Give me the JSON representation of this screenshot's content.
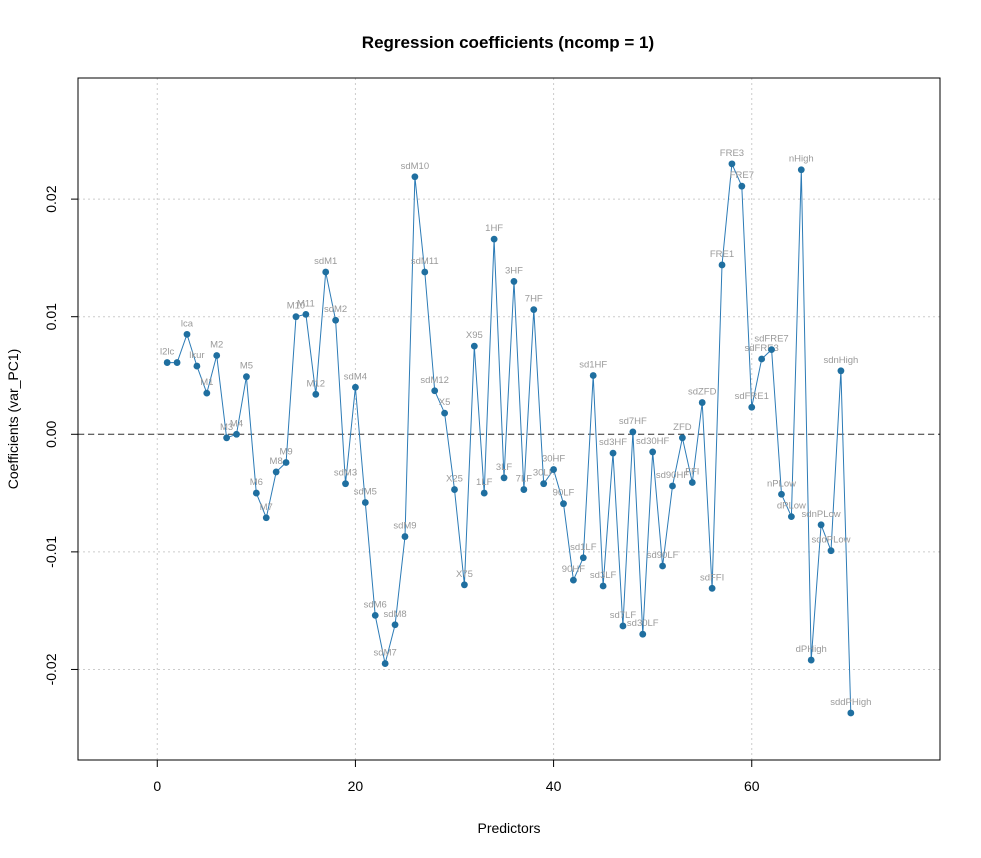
{
  "chart_data": {
    "type": "line",
    "title": "Regression coefficients (ncomp = 1)",
    "xlabel": "Predictors",
    "ylabel": "Coefficients (var_PC1)",
    "xlim": [
      -8,
      79
    ],
    "ylim": [
      -0.0277,
      0.0303
    ],
    "x_ticks": [
      0,
      20,
      40,
      60
    ],
    "y_ticks": [
      -0.02,
      -0.01,
      0.0,
      0.01,
      0.02
    ],
    "x_tick_labels": [
      "0",
      "20",
      "40",
      "60"
    ],
    "y_tick_labels": [
      "-0.02",
      "-0.01",
      "0.00",
      "0.01",
      "0.02"
    ],
    "grid": true,
    "reference_line": 0,
    "colors": {
      "line": "#2c7bb6",
      "point": "#1f6fa0",
      "label": "#9a9a9a",
      "grid": "#cccccc"
    },
    "points": [
      {
        "x": 1,
        "y": 0.0061,
        "label": "l2lc"
      },
      {
        "x": 2,
        "y": 0.0061,
        "label": ""
      },
      {
        "x": 3,
        "y": 0.0085,
        "label": "lca"
      },
      {
        "x": 4,
        "y": 0.0058,
        "label": "lkur"
      },
      {
        "x": 5,
        "y": 0.0035,
        "label": "M1"
      },
      {
        "x": 6,
        "y": 0.0067,
        "label": "M2"
      },
      {
        "x": 7,
        "y": -0.0003,
        "label": "M3"
      },
      {
        "x": 8,
        "y": 0.0,
        "label": "M4"
      },
      {
        "x": 9,
        "y": 0.0049,
        "label": "M5"
      },
      {
        "x": 10,
        "y": -0.005,
        "label": "M6"
      },
      {
        "x": 11,
        "y": -0.0071,
        "label": "M7"
      },
      {
        "x": 12,
        "y": -0.0032,
        "label": "M8"
      },
      {
        "x": 13,
        "y": -0.0024,
        "label": "M9"
      },
      {
        "x": 14,
        "y": 0.01,
        "label": "M10"
      },
      {
        "x": 15,
        "y": 0.0102,
        "label": "M11"
      },
      {
        "x": 16,
        "y": 0.0034,
        "label": "M12"
      },
      {
        "x": 17,
        "y": 0.0138,
        "label": "sdM1"
      },
      {
        "x": 18,
        "y": 0.0097,
        "label": "sdM2"
      },
      {
        "x": 19,
        "y": -0.0042,
        "label": "sdM3"
      },
      {
        "x": 20,
        "y": 0.004,
        "label": "sdM4"
      },
      {
        "x": 21,
        "y": -0.0058,
        "label": "sdM5"
      },
      {
        "x": 22,
        "y": -0.0154,
        "label": "sdM6"
      },
      {
        "x": 23,
        "y": -0.0195,
        "label": "sdM7"
      },
      {
        "x": 24,
        "y": -0.0162,
        "label": "sdM8"
      },
      {
        "x": 25,
        "y": -0.0087,
        "label": "sdM9"
      },
      {
        "x": 26,
        "y": 0.0219,
        "label": "sdM10"
      },
      {
        "x": 27,
        "y": 0.0138,
        "label": "sdM11"
      },
      {
        "x": 28,
        "y": 0.0037,
        "label": "sdM12"
      },
      {
        "x": 29,
        "y": 0.0018,
        "label": "X5"
      },
      {
        "x": 30,
        "y": -0.0047,
        "label": "X25"
      },
      {
        "x": 31,
        "y": -0.0128,
        "label": "X75"
      },
      {
        "x": 32,
        "y": 0.0075,
        "label": "X95"
      },
      {
        "x": 33,
        "y": -0.005,
        "label": "1LF"
      },
      {
        "x": 34,
        "y": 0.0166,
        "label": "1HF"
      },
      {
        "x": 35,
        "y": -0.0037,
        "label": "3LF"
      },
      {
        "x": 36,
        "y": 0.013,
        "label": "3HF"
      },
      {
        "x": 37,
        "y": -0.0047,
        "label": "7LF"
      },
      {
        "x": 38,
        "y": 0.0106,
        "label": "7HF"
      },
      {
        "x": 39,
        "y": -0.0042,
        "label": "30LF"
      },
      {
        "x": 40,
        "y": -0.003,
        "label": "30HF"
      },
      {
        "x": 41,
        "y": -0.0059,
        "label": "90LF"
      },
      {
        "x": 42,
        "y": -0.0124,
        "label": "90HF"
      },
      {
        "x": 43,
        "y": -0.0105,
        "label": "sd1LF"
      },
      {
        "x": 44,
        "y": 0.005,
        "label": "sd1HF"
      },
      {
        "x": 45,
        "y": -0.0129,
        "label": "sd3LF"
      },
      {
        "x": 46,
        "y": -0.0016,
        "label": "sd3HF"
      },
      {
        "x": 47,
        "y": -0.0163,
        "label": "sd7LF"
      },
      {
        "x": 48,
        "y": 0.0002,
        "label": "sd7HF"
      },
      {
        "x": 49,
        "y": -0.017,
        "label": "sd30LF"
      },
      {
        "x": 50,
        "y": -0.0015,
        "label": "sd30HF"
      },
      {
        "x": 51,
        "y": -0.0112,
        "label": "sd90LF"
      },
      {
        "x": 52,
        "y": -0.0044,
        "label": "sd90HF"
      },
      {
        "x": 53,
        "y": -0.0003,
        "label": "ZFD"
      },
      {
        "x": 54,
        "y": -0.0041,
        "label": "FFI"
      },
      {
        "x": 55,
        "y": 0.0027,
        "label": "sdZFD"
      },
      {
        "x": 56,
        "y": -0.0131,
        "label": "sdFFI"
      },
      {
        "x": 57,
        "y": 0.0144,
        "label": "FRE1"
      },
      {
        "x": 58,
        "y": 0.023,
        "label": "FRE3"
      },
      {
        "x": 59,
        "y": 0.0211,
        "label": "FRE7"
      },
      {
        "x": 60,
        "y": 0.0023,
        "label": "sdFRE1"
      },
      {
        "x": 61,
        "y": 0.0064,
        "label": "sdFRE3"
      },
      {
        "x": 62,
        "y": 0.0072,
        "label": "sdFRE7"
      },
      {
        "x": 63,
        "y": -0.0051,
        "label": "nPLow"
      },
      {
        "x": 64,
        "y": -0.007,
        "label": "dPLow"
      },
      {
        "x": 65,
        "y": 0.0225,
        "label": "nHigh"
      },
      {
        "x": 66,
        "y": -0.0192,
        "label": "dPHigh"
      },
      {
        "x": 67,
        "y": -0.0077,
        "label": "sdnPLow"
      },
      {
        "x": 68,
        "y": -0.0099,
        "label": "sddPLow"
      },
      {
        "x": 69,
        "y": 0.0054,
        "label": "sdnHigh"
      },
      {
        "x": 70,
        "y": -0.0237,
        "label": "sddPHigh"
      }
    ]
  }
}
